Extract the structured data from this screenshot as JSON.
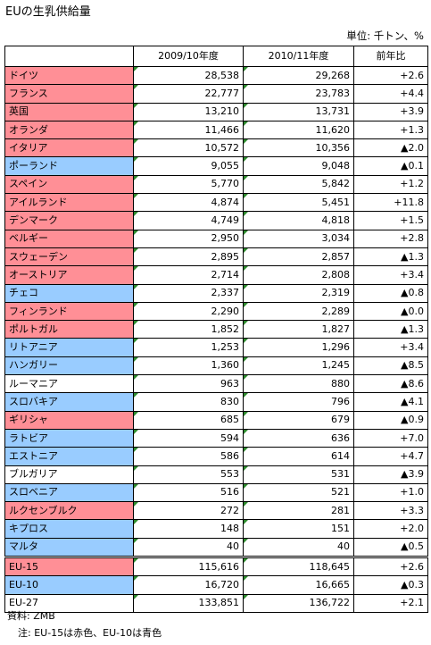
{
  "title": "EUの生乳供給量",
  "unit": "単位: 千トン、%",
  "headers": [
    "",
    "2009/10年度",
    "2010/11年度",
    "前年比"
  ],
  "colors": {
    "red": "#ff8f96",
    "blue": "#99ccff"
  },
  "rows": [
    {
      "name": "ドイツ",
      "v1": "28,538",
      "v2": "29,268",
      "chg": "+2.6",
      "group": "red"
    },
    {
      "name": "フランス",
      "v1": "22,777",
      "v2": "23,783",
      "chg": "+4.4",
      "group": "red"
    },
    {
      "name": "英国",
      "v1": "13,210",
      "v2": "13,731",
      "chg": "+3.9",
      "group": "red"
    },
    {
      "name": "オランダ",
      "v1": "11,466",
      "v2": "11,620",
      "chg": "+1.3",
      "group": "red"
    },
    {
      "name": "イタリア",
      "v1": "10,572",
      "v2": "10,356",
      "chg": "▲2.0",
      "group": "red"
    },
    {
      "name": "ポーランド",
      "v1": "9,055",
      "v2": "9,048",
      "chg": "▲0.1",
      "group": "blue"
    },
    {
      "name": "スペイン",
      "v1": "5,770",
      "v2": "5,842",
      "chg": "+1.2",
      "group": "red"
    },
    {
      "name": "アイルランド",
      "v1": "4,874",
      "v2": "5,451",
      "chg": "+11.8",
      "group": "red"
    },
    {
      "name": "デンマーク",
      "v1": "4,749",
      "v2": "4,818",
      "chg": "+1.5",
      "group": "red"
    },
    {
      "name": "ベルギー",
      "v1": "2,950",
      "v2": "3,034",
      "chg": "+2.8",
      "group": "red"
    },
    {
      "name": "スウェーデン",
      "v1": "2,895",
      "v2": "2,857",
      "chg": "▲1.3",
      "group": "red"
    },
    {
      "name": "オーストリア",
      "v1": "2,714",
      "v2": "2,808",
      "chg": "+3.4",
      "group": "red"
    },
    {
      "name": "チェコ",
      "v1": "2,337",
      "v2": "2,319",
      "chg": "▲0.8",
      "group": "blue"
    },
    {
      "name": "フィンランド",
      "v1": "2,290",
      "v2": "2,289",
      "chg": "▲0.0",
      "group": "red"
    },
    {
      "name": "ポルトガル",
      "v1": "1,852",
      "v2": "1,827",
      "chg": "▲1.3",
      "group": "red"
    },
    {
      "name": "リトアニア",
      "v1": "1,253",
      "v2": "1,296",
      "chg": "+3.4",
      "group": "blue"
    },
    {
      "name": "ハンガリー",
      "v1": "1,360",
      "v2": "1,245",
      "chg": "▲8.5",
      "group": "blue"
    },
    {
      "name": "ルーマニア",
      "v1": "963",
      "v2": "880",
      "chg": "▲8.6",
      "group": "white"
    },
    {
      "name": "スロバキア",
      "v1": "830",
      "v2": "796",
      "chg": "▲4.1",
      "group": "blue"
    },
    {
      "name": "ギリシャ",
      "v1": "685",
      "v2": "679",
      "chg": "▲0.9",
      "group": "red"
    },
    {
      "name": "ラトビア",
      "v1": "594",
      "v2": "636",
      "chg": "+7.0",
      "group": "blue"
    },
    {
      "name": "エストニア",
      "v1": "586",
      "v2": "614",
      "chg": "+4.7",
      "group": "blue"
    },
    {
      "name": "ブルガリア",
      "v1": "553",
      "v2": "531",
      "chg": "▲3.9",
      "group": "white"
    },
    {
      "name": "スロベニア",
      "v1": "516",
      "v2": "521",
      "chg": "+1.0",
      "group": "blue"
    },
    {
      "name": "ルクセンブルク",
      "v1": "272",
      "v2": "281",
      "chg": "+3.3",
      "group": "red"
    },
    {
      "name": "キプロス",
      "v1": "148",
      "v2": "151",
      "chg": "+2.0",
      "group": "blue"
    },
    {
      "name": "マルタ",
      "v1": "40",
      "v2": "40",
      "chg": "▲0.5",
      "group": "blue"
    }
  ],
  "totals": [
    {
      "name": "EU-15",
      "v1": "115,616",
      "v2": "118,645",
      "chg": "+2.6",
      "group": "red"
    },
    {
      "name": "EU-10",
      "v1": "16,720",
      "v2": "16,665",
      "chg": "▲0.3",
      "group": "blue"
    },
    {
      "name": "EU-27",
      "v1": "133,851",
      "v2": "136,722",
      "chg": "+2.1",
      "group": "white"
    }
  ],
  "source": "資料: ZMB",
  "note": "注: EU-15は赤色、EU-10は青色"
}
